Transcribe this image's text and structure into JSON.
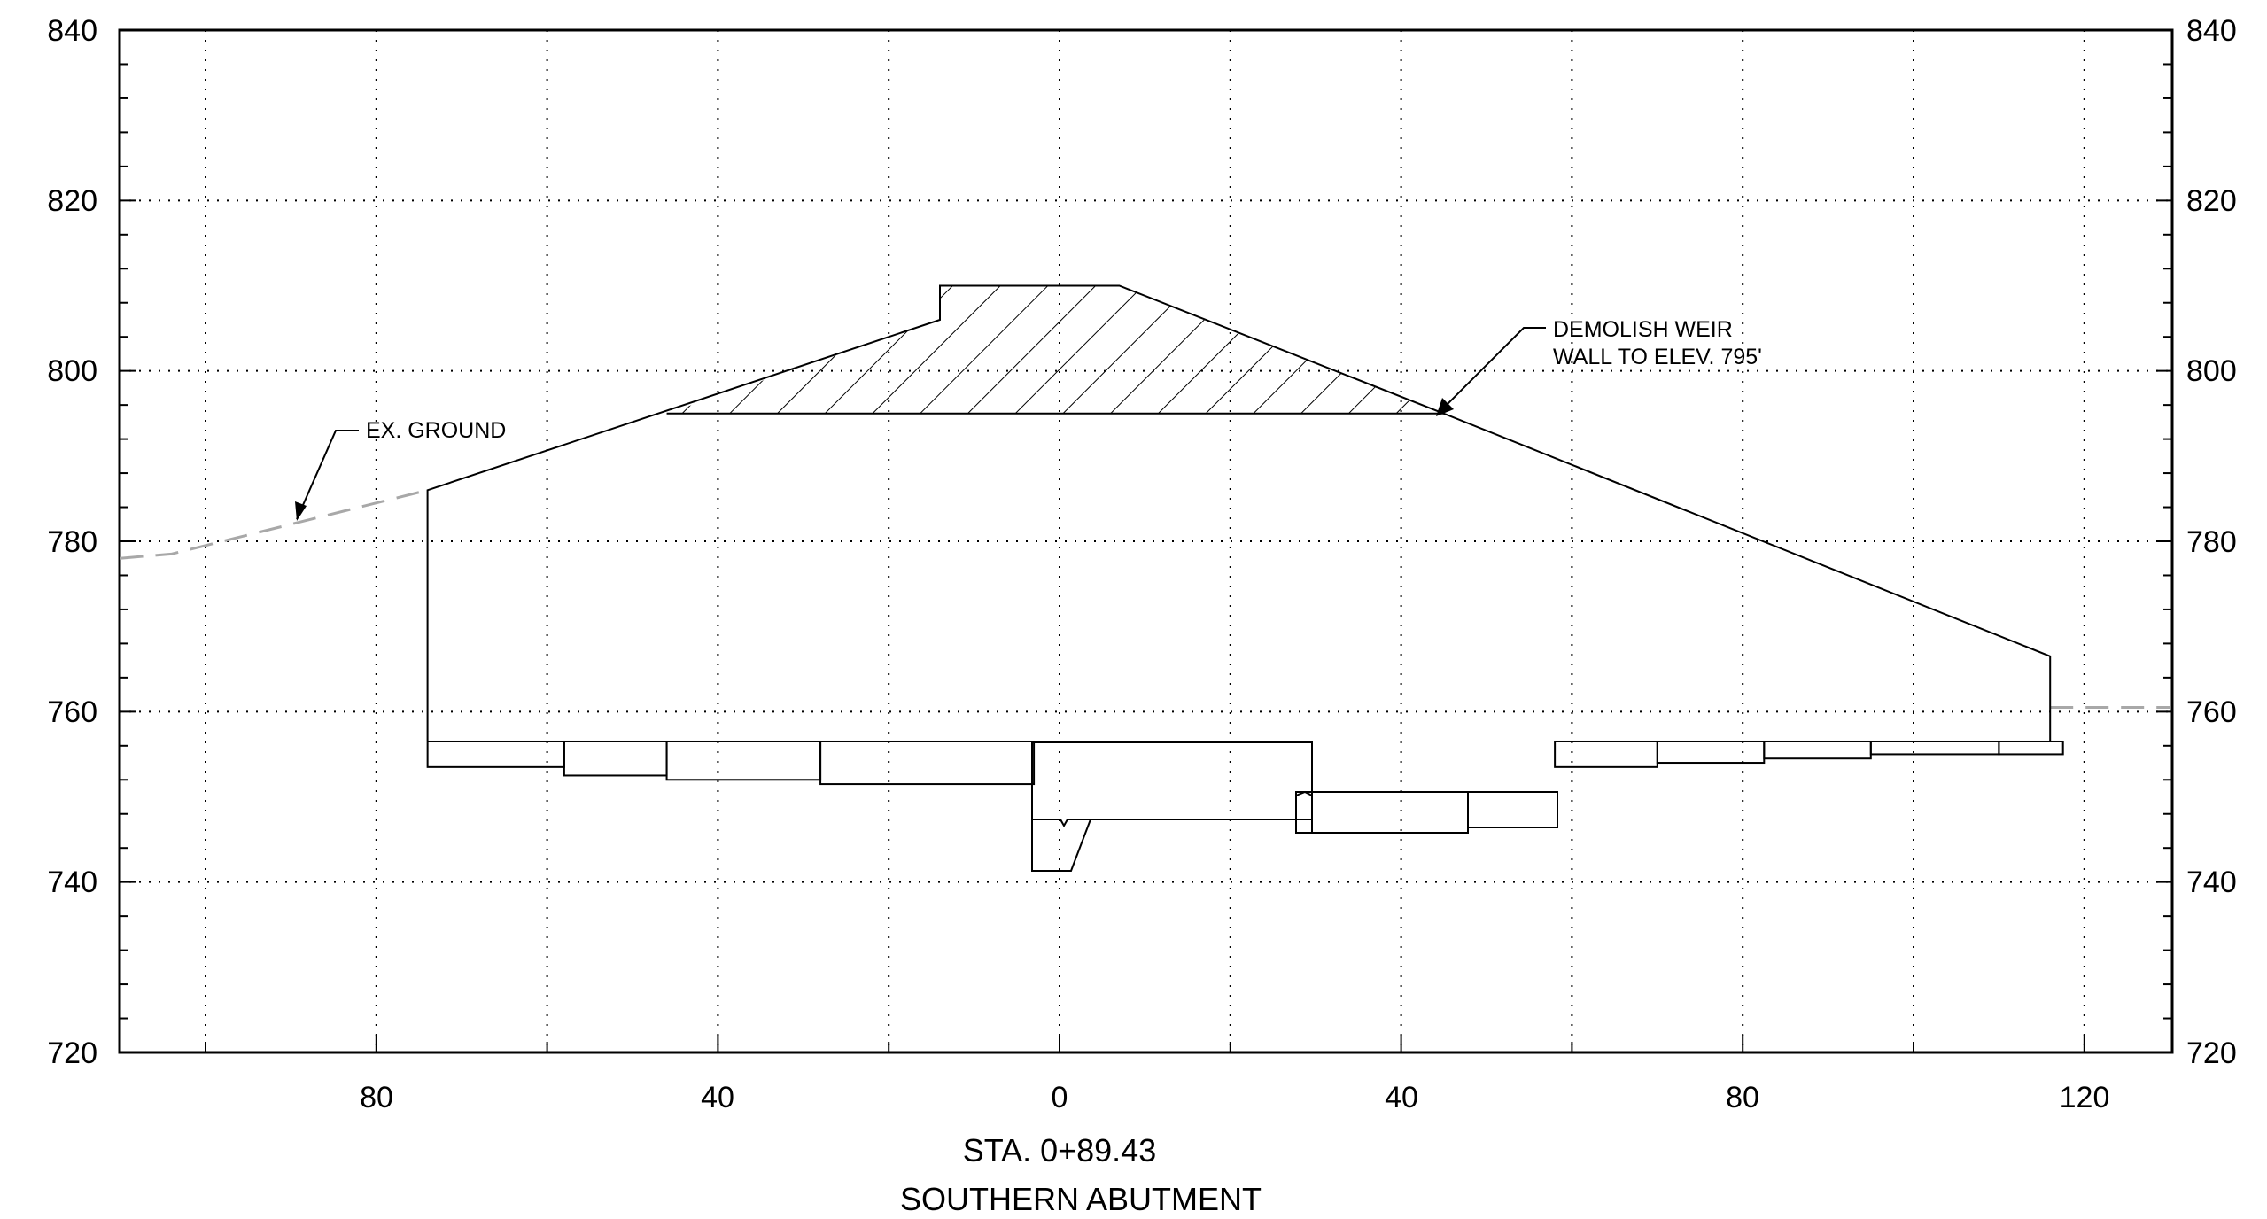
{
  "chart_data": {
    "type": "cross-section",
    "x_ticks_left": [
      "80",
      "40",
      "0"
    ],
    "x_ticks_right": [
      "40",
      "80",
      "120"
    ],
    "y_ticks": [
      "840",
      "820",
      "800",
      "780",
      "760",
      "740",
      "720"
    ],
    "ylim": [
      720,
      840
    ],
    "xlim": [
      -110,
      130
    ],
    "grid": true,
    "existing_ground": [
      {
        "x": -110,
        "y": 778
      },
      {
        "x": -104,
        "y": 778.5
      },
      {
        "x": -90,
        "y": 782
      },
      {
        "x": -74,
        "y": 786
      }
    ],
    "existing_ground_right": [
      {
        "x": 116,
        "y": 760.5
      },
      {
        "x": 130,
        "y": 760.5
      }
    ],
    "weir_profile": [
      {
        "x": -74,
        "y": 756.5
      },
      {
        "x": -74,
        "y": 786
      },
      {
        "x": -14,
        "y": 806
      },
      {
        "x": -14,
        "y": 810
      },
      {
        "x": 7,
        "y": 810
      },
      {
        "x": 45,
        "y": 795
      },
      {
        "x": 116,
        "y": 766.5
      },
      {
        "x": 116,
        "y": 756.5
      }
    ],
    "demolition_zone": [
      {
        "x": -46,
        "y": 795
      },
      {
        "x": -14,
        "y": 806
      },
      {
        "x": -14,
        "y": 810
      },
      {
        "x": 7,
        "y": 810
      },
      {
        "x": 45,
        "y": 795
      }
    ],
    "demolition_elevation": 795,
    "foundation_steps": [
      {
        "x1": -74,
        "x2": -58,
        "bottom": 753.5
      },
      {
        "x1": -58,
        "x2": -46,
        "bottom": 752.5
      },
      {
        "x1": -46,
        "x2": -28,
        "bottom": 752
      },
      {
        "x1": -28,
        "x2": -3,
        "bottom": 751.5
      },
      {
        "x1": 58,
        "x2": 70,
        "bottom": 753.5
      },
      {
        "x1": 70,
        "x2": 82.5,
        "bottom": 754
      },
      {
        "x1": 82.5,
        "x2": 95,
        "bottom": 754.5
      },
      {
        "x1": 95,
        "x2": 110,
        "bottom": 755
      },
      {
        "x1": 110,
        "x2": 117.5,
        "bottom": 755
      }
    ],
    "annotations": {
      "ex_ground": "EX. GROUND",
      "demolish_line1": "DEMOLISH WEIR",
      "demolish_line2": "WALL TO ELEV. 795'"
    },
    "station": "STA. 0+89.43",
    "section_title": "SOUTHERN ABUTMENT"
  }
}
